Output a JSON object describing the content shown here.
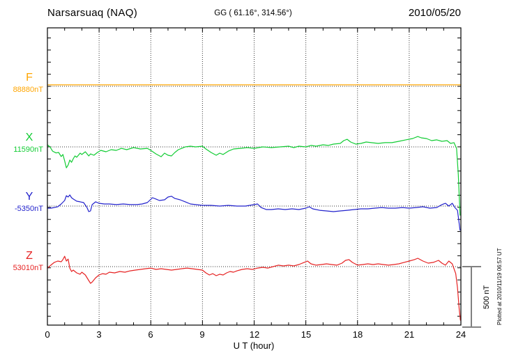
{
  "header": {
    "station": "Narsarsuaq (NAQ)",
    "coords": "GG ( 61.16°, 314.56°)",
    "date": "2010/05/20"
  },
  "plotted_note": "Plotted at 2010/11/19 06:57 UT",
  "scale_bar": {
    "label": "500 nT",
    "nT": 500,
    "color": "#808080"
  },
  "axis": {
    "xlabel": "U T (hour)",
    "xtick_labels": [
      "0",
      "3",
      "6",
      "9",
      "12",
      "15",
      "18",
      "21",
      "24"
    ]
  },
  "chart_data": {
    "type": "line",
    "title": "Narsarsuaq (NAQ)",
    "xlabel": "U T (hour)",
    "x_range": [
      0,
      24
    ],
    "xticks": [
      0,
      3,
      6,
      9,
      12,
      15,
      18,
      21,
      24
    ],
    "minor_xtick_every_hours": 1,
    "minor_ytick_every_nT": 100,
    "grid": "dotted vertical at 3h, dotted horizontal at each component baseline",
    "y_unit": "nT offset from component baseline",
    "scale_reference_nT": 500,
    "series": [
      {
        "name": "F",
        "baseline_label": "88880nT",
        "baseline_nT": 88880,
        "color": "#FFA500",
        "points": [
          [
            0,
            12
          ],
          [
            24,
            12
          ]
        ]
      },
      {
        "name": "X",
        "baseline_label": "11590nT",
        "baseline_nT": 11590,
        "color": "#11CC33",
        "points": [
          [
            0,
            17
          ],
          [
            0.15,
            0
          ],
          [
            0.3,
            -35
          ],
          [
            0.5,
            -50
          ],
          [
            0.65,
            -46
          ],
          [
            0.8,
            -80
          ],
          [
            0.9,
            -63
          ],
          [
            1,
            -115
          ],
          [
            1.1,
            -173
          ],
          [
            1.2,
            -150
          ],
          [
            1.3,
            -109
          ],
          [
            1.4,
            -127
          ],
          [
            1.5,
            -98
          ],
          [
            1.6,
            -75
          ],
          [
            1.7,
            -86
          ],
          [
            1.9,
            -52
          ],
          [
            2,
            -63
          ],
          [
            2.2,
            -40
          ],
          [
            2.4,
            -75
          ],
          [
            2.5,
            -58
          ],
          [
            2.7,
            -69
          ],
          [
            2.9,
            -46
          ],
          [
            3.1,
            -29
          ],
          [
            3.4,
            -40
          ],
          [
            3.7,
            -23
          ],
          [
            4,
            -29
          ],
          [
            4.3,
            -12
          ],
          [
            4.6,
            -23
          ],
          [
            5,
            -6
          ],
          [
            5.4,
            -17
          ],
          [
            5.8,
            -12
          ],
          [
            6,
            -29
          ],
          [
            6.3,
            -58
          ],
          [
            6.6,
            -81
          ],
          [
            6.8,
            -52
          ],
          [
            7,
            -69
          ],
          [
            7.2,
            -75
          ],
          [
            7.4,
            -46
          ],
          [
            7.6,
            -23
          ],
          [
            7.8,
            -12
          ],
          [
            8,
            0
          ],
          [
            8.3,
            6
          ],
          [
            8.6,
            0
          ],
          [
            9,
            6
          ],
          [
            9.2,
            -17
          ],
          [
            9.5,
            -46
          ],
          [
            9.8,
            -69
          ],
          [
            10,
            -52
          ],
          [
            10.2,
            -63
          ],
          [
            10.5,
            -35
          ],
          [
            10.8,
            -17
          ],
          [
            11.2,
            -12
          ],
          [
            11.6,
            -6
          ],
          [
            12,
            -12
          ],
          [
            12.5,
            0
          ],
          [
            13,
            -6
          ],
          [
            13.5,
            0
          ],
          [
            14,
            6
          ],
          [
            14.3,
            -6
          ],
          [
            14.6,
            6
          ],
          [
            15,
            0
          ],
          [
            15.3,
            12
          ],
          [
            15.6,
            6
          ],
          [
            16,
            17
          ],
          [
            16.3,
            12
          ],
          [
            16.6,
            23
          ],
          [
            17,
            29
          ],
          [
            17.2,
            52
          ],
          [
            17.4,
            63
          ],
          [
            17.6,
            40
          ],
          [
            17.9,
            23
          ],
          [
            18.2,
            29
          ],
          [
            18.5,
            40
          ],
          [
            18.8,
            35
          ],
          [
            19.2,
            29
          ],
          [
            19.6,
            35
          ],
          [
            20,
            35
          ],
          [
            20.4,
            46
          ],
          [
            20.8,
            58
          ],
          [
            21.2,
            69
          ],
          [
            21.5,
            86
          ],
          [
            21.7,
            75
          ],
          [
            22,
            69
          ],
          [
            22.3,
            52
          ],
          [
            22.6,
            58
          ],
          [
            22.9,
            46
          ],
          [
            23.2,
            52
          ],
          [
            23.4,
            29
          ],
          [
            23.6,
            35
          ],
          [
            23.75,
            -12
          ],
          [
            23.85,
            -230
          ],
          [
            23.95,
            -565
          ]
        ]
      },
      {
        "name": "Y",
        "baseline_label": "-5350nT",
        "baseline_nT": -5350,
        "color": "#2222CC",
        "points": [
          [
            0,
            -17
          ],
          [
            0.2,
            -17
          ],
          [
            0.4,
            -12
          ],
          [
            0.6,
            -6
          ],
          [
            0.8,
            17
          ],
          [
            1,
            46
          ],
          [
            1.1,
            86
          ],
          [
            1.2,
            75
          ],
          [
            1.3,
            92
          ],
          [
            1.4,
            69
          ],
          [
            1.5,
            58
          ],
          [
            1.7,
            40
          ],
          [
            1.9,
            35
          ],
          [
            2.1,
            29
          ],
          [
            2.3,
            -12
          ],
          [
            2.4,
            -46
          ],
          [
            2.5,
            -40
          ],
          [
            2.6,
            12
          ],
          [
            2.8,
            35
          ],
          [
            3,
            23
          ],
          [
            3.3,
            17
          ],
          [
            3.6,
            17
          ],
          [
            4,
            12
          ],
          [
            4.4,
            17
          ],
          [
            4.8,
            12
          ],
          [
            5.2,
            12
          ],
          [
            5.5,
            17
          ],
          [
            5.8,
            29
          ],
          [
            6.1,
            69
          ],
          [
            6.3,
            58
          ],
          [
            6.5,
            46
          ],
          [
            6.8,
            52
          ],
          [
            7,
            75
          ],
          [
            7.2,
            81
          ],
          [
            7.4,
            63
          ],
          [
            7.7,
            52
          ],
          [
            8,
            35
          ],
          [
            8.3,
            17
          ],
          [
            8.6,
            12
          ],
          [
            9,
            6
          ],
          [
            9.5,
            6
          ],
          [
            10,
            0
          ],
          [
            10.5,
            6
          ],
          [
            11,
            0
          ],
          [
            11.5,
            0
          ],
          [
            12,
            12
          ],
          [
            12.2,
            17
          ],
          [
            12.4,
            -12
          ],
          [
            12.7,
            -29
          ],
          [
            13,
            -29
          ],
          [
            13.4,
            -23
          ],
          [
            13.8,
            -29
          ],
          [
            14.2,
            -23
          ],
          [
            14.6,
            -29
          ],
          [
            15,
            -17
          ],
          [
            15.2,
            -6
          ],
          [
            15.4,
            -23
          ],
          [
            15.8,
            -35
          ],
          [
            16.2,
            -40
          ],
          [
            16.6,
            -46
          ],
          [
            17,
            -40
          ],
          [
            17.4,
            -35
          ],
          [
            17.8,
            -29
          ],
          [
            18.2,
            -23
          ],
          [
            18.6,
            -23
          ],
          [
            19,
            -17
          ],
          [
            19.4,
            -12
          ],
          [
            19.8,
            -17
          ],
          [
            20.2,
            -17
          ],
          [
            20.6,
            -12
          ],
          [
            21,
            -17
          ],
          [
            21.4,
            -12
          ],
          [
            21.8,
            -6
          ],
          [
            22.2,
            -17
          ],
          [
            22.6,
            -12
          ],
          [
            22.9,
            12
          ],
          [
            23.1,
            23
          ],
          [
            23.3,
            0
          ],
          [
            23.5,
            23
          ],
          [
            23.65,
            -12
          ],
          [
            23.8,
            -35
          ],
          [
            23.95,
            -200
          ]
        ]
      },
      {
        "name": "Z",
        "baseline_label": "53010nT",
        "baseline_nT": 53010,
        "color": "#E62222",
        "points": [
          [
            0,
            -12
          ],
          [
            0.2,
            12
          ],
          [
            0.4,
            35
          ],
          [
            0.6,
            46
          ],
          [
            0.8,
            40
          ],
          [
            0.9,
            58
          ],
          [
            1,
            86
          ],
          [
            1.1,
            46
          ],
          [
            1.2,
            63
          ],
          [
            1.3,
            -12
          ],
          [
            1.4,
            -40
          ],
          [
            1.5,
            -29
          ],
          [
            1.7,
            -52
          ],
          [
            1.9,
            -63
          ],
          [
            2,
            -46
          ],
          [
            2.2,
            -69
          ],
          [
            2.4,
            -115
          ],
          [
            2.5,
            -138
          ],
          [
            2.6,
            -127
          ],
          [
            2.8,
            -92
          ],
          [
            3,
            -69
          ],
          [
            3.2,
            -58
          ],
          [
            3.4,
            -63
          ],
          [
            3.6,
            -46
          ],
          [
            3.9,
            -52
          ],
          [
            4.2,
            -40
          ],
          [
            4.5,
            -46
          ],
          [
            4.8,
            -35
          ],
          [
            5.1,
            -29
          ],
          [
            5.4,
            -23
          ],
          [
            5.7,
            -17
          ],
          [
            6,
            -12
          ],
          [
            6.3,
            -23
          ],
          [
            6.6,
            -17
          ],
          [
            6.9,
            -23
          ],
          [
            7.2,
            -29
          ],
          [
            7.5,
            -23
          ],
          [
            7.8,
            -17
          ],
          [
            8.1,
            -12
          ],
          [
            8.4,
            -17
          ],
          [
            8.7,
            -23
          ],
          [
            9,
            -29
          ],
          [
            9.2,
            -52
          ],
          [
            9.4,
            -69
          ],
          [
            9.6,
            -58
          ],
          [
            9.8,
            -75
          ],
          [
            10,
            -63
          ],
          [
            10.2,
            -69
          ],
          [
            10.4,
            -52
          ],
          [
            10.6,
            -40
          ],
          [
            10.8,
            -46
          ],
          [
            11,
            -35
          ],
          [
            11.3,
            -23
          ],
          [
            11.6,
            -17
          ],
          [
            11.9,
            -23
          ],
          [
            12.2,
            -12
          ],
          [
            12.5,
            -6
          ],
          [
            12.8,
            -12
          ],
          [
            13.1,
            0
          ],
          [
            13.4,
            12
          ],
          [
            13.7,
            6
          ],
          [
            14,
            12
          ],
          [
            14.3,
            6
          ],
          [
            14.6,
            17
          ],
          [
            14.9,
            35
          ],
          [
            15.1,
            46
          ],
          [
            15.3,
            23
          ],
          [
            15.6,
            12
          ],
          [
            15.9,
            17
          ],
          [
            16.2,
            23
          ],
          [
            16.5,
            17
          ],
          [
            16.8,
            12
          ],
          [
            17.1,
            29
          ],
          [
            17.3,
            52
          ],
          [
            17.5,
            58
          ],
          [
            17.7,
            35
          ],
          [
            18,
            12
          ],
          [
            18.3,
            17
          ],
          [
            18.6,
            23
          ],
          [
            18.9,
            17
          ],
          [
            19.2,
            23
          ],
          [
            19.5,
            17
          ],
          [
            19.8,
            12
          ],
          [
            20.1,
            17
          ],
          [
            20.4,
            23
          ],
          [
            20.7,
            35
          ],
          [
            21,
            46
          ],
          [
            21.3,
            58
          ],
          [
            21.5,
            69
          ],
          [
            21.8,
            46
          ],
          [
            22.1,
            29
          ],
          [
            22.4,
            35
          ],
          [
            22.7,
            52
          ],
          [
            22.9,
            29
          ],
          [
            23.1,
            12
          ],
          [
            23.3,
            46
          ],
          [
            23.5,
            23
          ],
          [
            23.6,
            -17
          ],
          [
            23.7,
            -58
          ],
          [
            23.8,
            -173
          ],
          [
            23.9,
            -345
          ],
          [
            23.97,
            -443
          ]
        ]
      }
    ]
  }
}
